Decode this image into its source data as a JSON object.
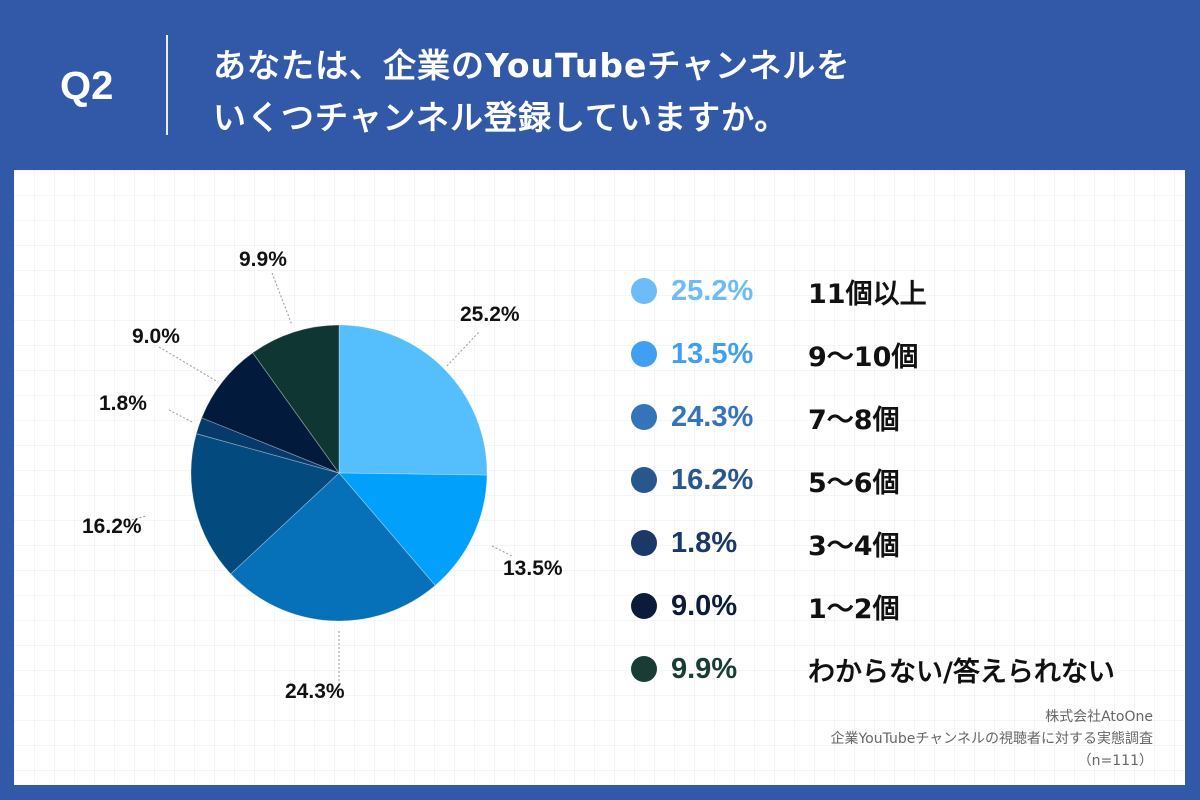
{
  "header": {
    "question_number": "Q2",
    "title_line1": "あなたは、企業のYouTubeチャンネルを",
    "title_line2": "いくつチャンネル登録していますか。"
  },
  "colors": {
    "header_bg": "#3258A8",
    "panel_bg": "#FFFFFF"
  },
  "chart_data": {
    "type": "pie",
    "title": "あなたは、企業のYouTubeチャンネルをいくつチャンネル登録していますか。",
    "start_angle_deg": 0,
    "direction": "clockwise",
    "categories": [
      "11個以上",
      "9〜10個",
      "7〜8個",
      "5〜6個",
      "3〜4個",
      "1〜2個",
      "わからない/答えられない"
    ],
    "values": [
      25.2,
      13.5,
      24.3,
      16.2,
      1.8,
      9.0,
      9.9
    ],
    "labels": [
      "25.2%",
      "13.5%",
      "24.3%",
      "16.2%",
      "1.8%",
      "9.0%",
      "9.9%"
    ],
    "slice_colors": [
      "#55BEFC",
      "#00A0FB",
      "#0670B8",
      "#034A7E",
      "#063A6A",
      "#021A3C",
      "#103634"
    ],
    "legend_colors": [
      "#6DBCF7",
      "#3F9FF2",
      "#3474B9",
      "#27578D",
      "#1B3868",
      "#0B1B3A",
      "#173D35"
    ],
    "legend_position": "right",
    "n": 111
  },
  "legend": [
    {
      "pct": "25.2%",
      "label": "11個以上"
    },
    {
      "pct": "13.5%",
      "label": "9〜10個"
    },
    {
      "pct": "24.3%",
      "label": "7〜8個"
    },
    {
      "pct": "16.2%",
      "label": "5〜6個"
    },
    {
      "pct": "1.8%",
      "label": "3〜4個"
    },
    {
      "pct": "9.0%",
      "label": "1〜2個"
    },
    {
      "pct": "9.9%",
      "label": "わからない/答えられない"
    }
  ],
  "source": {
    "company": "株式会社AtoOne",
    "survey": "企業YouTubeチャンネルの視聴者に対する実態調査",
    "sample": "（n=111）"
  }
}
